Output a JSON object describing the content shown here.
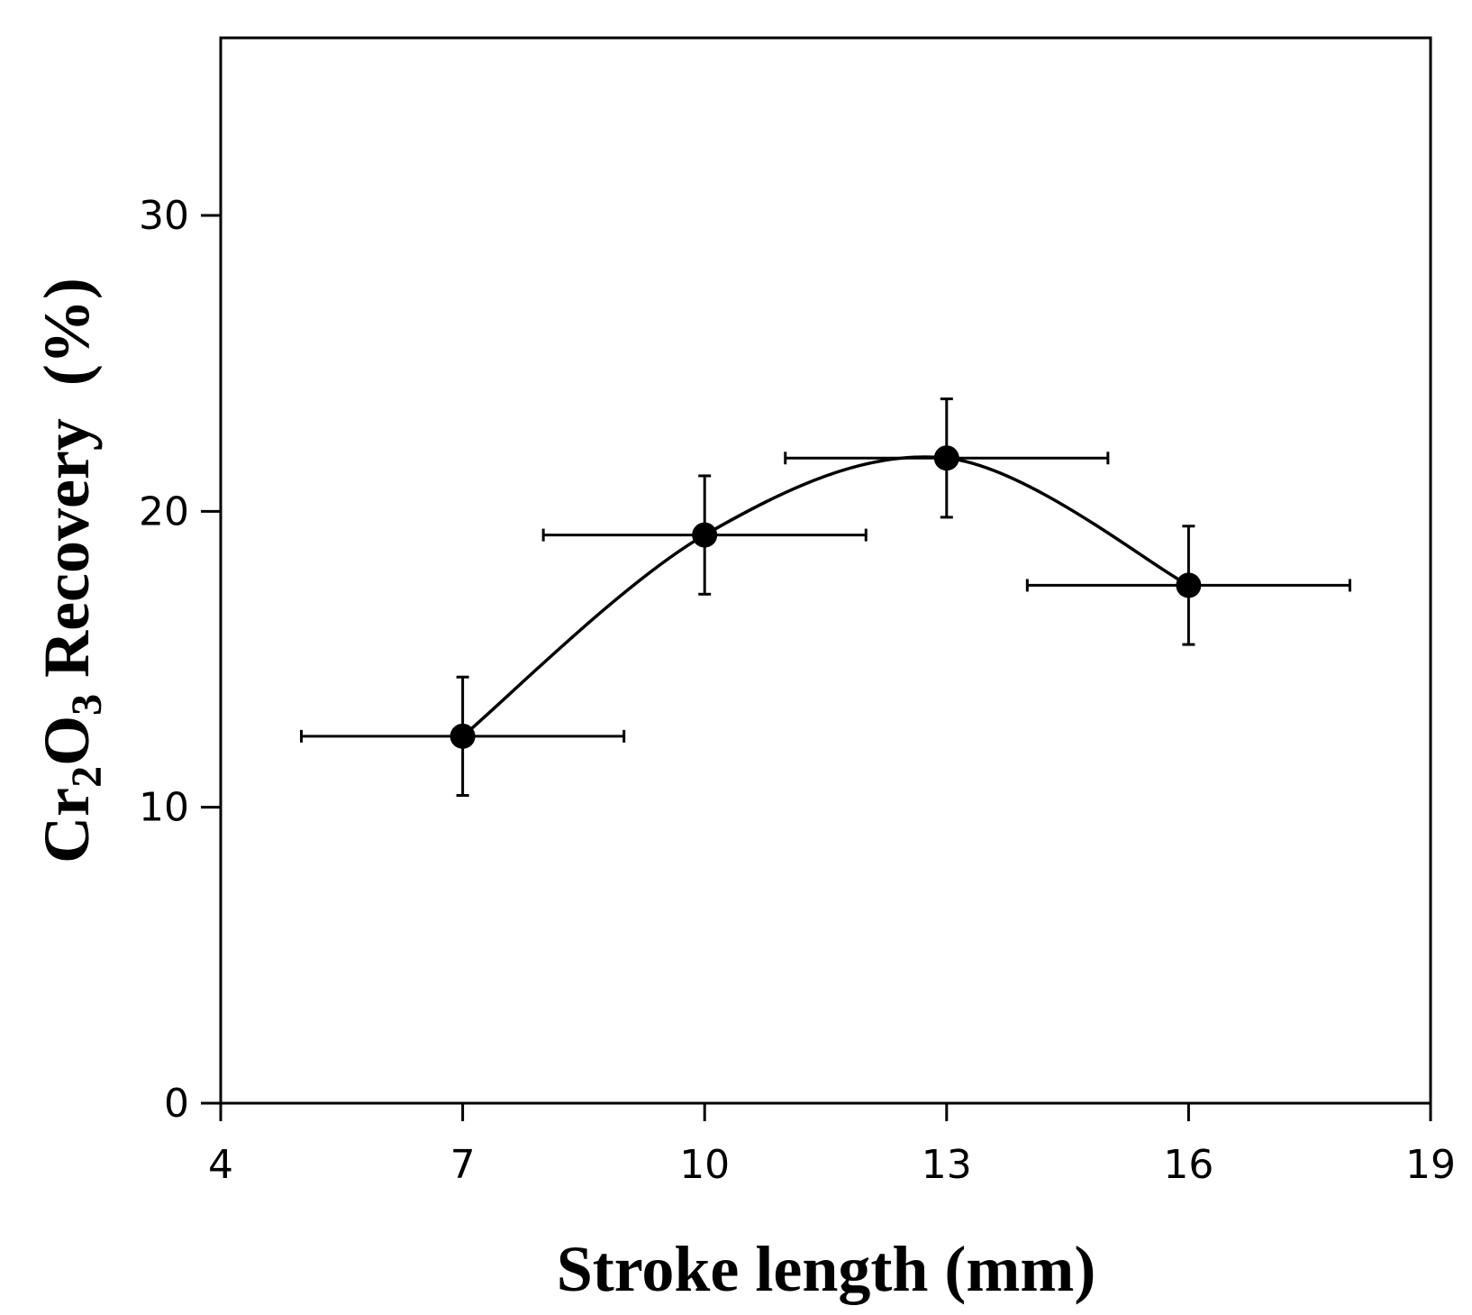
{
  "chart_data": {
    "type": "scatter",
    "xlabel": "Stroke length (mm)",
    "ylabel": {
      "parts": [
        "Cr",
        "2",
        "O",
        "3",
        " Recovery  (%)"
      ]
    },
    "xlim": [
      4,
      19
    ],
    "ylim": [
      0,
      36
    ],
    "xticks": [
      "4",
      "7",
      "10",
      "13",
      "16",
      "19"
    ],
    "yticks": [
      "0",
      "10",
      "20",
      "30"
    ],
    "grid": false,
    "legend": "none",
    "series": [
      {
        "points": [
          {
            "x": 7,
            "y": 12.4,
            "xerr": [
              2,
              2
            ],
            "yerr": [
              2,
              2
            ]
          },
          {
            "x": 10,
            "y": 19.2,
            "xerr": [
              2,
              2
            ],
            "yerr": [
              2,
              2
            ]
          },
          {
            "x": 13,
            "y": 21.8,
            "xerr": [
              2,
              2
            ],
            "yerr": [
              2,
              2
            ]
          },
          {
            "x": 16,
            "y": 17.5,
            "xerr": [
              2,
              2
            ],
            "yerr": [
              2,
              2
            ]
          }
        ],
        "curve": "smooth",
        "color": "#000000"
      }
    ]
  }
}
